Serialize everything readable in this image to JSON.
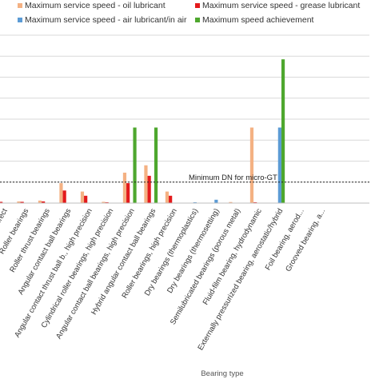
{
  "chart_data": {
    "type": "bar",
    "xlabel": "Bearing type",
    "ylabel": "",
    "ylim": [
      0,
      8
    ],
    "grid": true,
    "legend_placement": "top",
    "categories": [
      "...rect",
      "Roller bearings",
      "Roller thrust bearings",
      "Angular contact ball bearings",
      "Angular contact thrust ball b., high precision",
      "Cylindrical roller bearings, high precision",
      "Angular contact ball bearings, high precision",
      "Hybrid angular contact ball bearings",
      "Roller bearings, high precision",
      "Dry bearings (thermoplastics)",
      "Dry bearings (thermosetting)",
      "Semilubricated bearings (porous metal)",
      "Fluid-film bearing, hydrodynamic",
      "Externally pressurized bearing, aerostatic/hybrid",
      "Foil bearing, aerod...",
      "Grooved bearing, a..."
    ],
    "series": [
      {
        "name": "Maximum service speed - oil lubricant",
        "color": "#f4b183",
        "values": [
          0.08,
          0.08,
          0.12,
          0.95,
          0.55,
          0.06,
          1.45,
          1.8,
          0.55,
          0,
          0,
          0.05,
          3.6,
          0,
          0,
          0
        ]
      },
      {
        "name": "Maximum service speed - grease lubricant",
        "color": "#e31a1c",
        "values": [
          0.06,
          0.06,
          0.08,
          0.6,
          0.35,
          0.04,
          0.95,
          1.3,
          0.35,
          0,
          0,
          0,
          0.04,
          0,
          0,
          0
        ]
      },
      {
        "name": "Maximum service speed - air lubricant/in air",
        "color": "#5b9bd5",
        "values": [
          0,
          0,
          0,
          0,
          0,
          0,
          0,
          0,
          0,
          0.04,
          0.16,
          0,
          0,
          3.6,
          0,
          0
        ]
      },
      {
        "name": "Maximum speed achievement",
        "color": "#4ea72e",
        "values": [
          0,
          0,
          0,
          0,
          0,
          0,
          3.6,
          3.6,
          0,
          0,
          0,
          0,
          0,
          6.85,
          0,
          0
        ]
      }
    ],
    "reference_line": {
      "label": "Minimum DN for micro-GT",
      "value": 1.0
    }
  }
}
